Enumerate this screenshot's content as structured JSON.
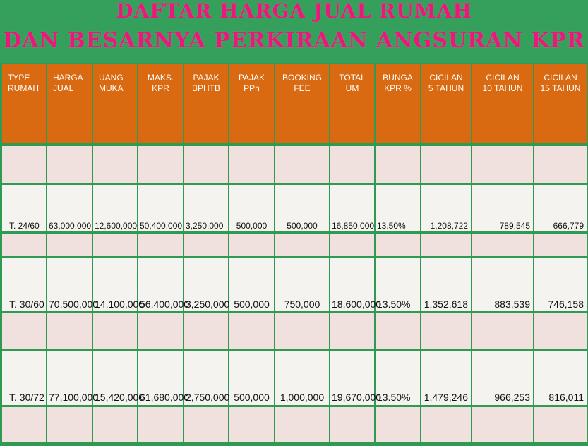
{
  "title": {
    "line1": "DAFTAR HARGA JUAL RUMAH",
    "line2": "DAN BESARNYA PERKIRAAN ANGSURAN KPR"
  },
  "headers": [
    "TYPE\nRUMAH",
    "HARGA\nJUAL",
    "UANG\nMUKA",
    "MAKS.\nKPR",
    "PAJAK\nBPHTB",
    "PAJAK\nPPh",
    "BOOKING\nFEE",
    "TOTAL\nUM",
    "BUNGA\nKPR %",
    "CICILAN\n5 TAHUN",
    "CICILAN\n10 TAHUN",
    "CICILAN\n15 TAHUN"
  ],
  "rows": [
    [
      "T. 24/60",
      "63,000,000",
      "12,600,000",
      "50,400,000",
      "3,250,000",
      "500,000",
      "500,000",
      "16,850,000",
      "13.50%",
      "1,208,722",
      "789,545",
      "666,779"
    ],
    [
      "T. 30/60",
      "70,500,000",
      "14,100,000",
      "56,400,000",
      "3,250,000",
      "500,000",
      "750,000",
      "18,600,000",
      "13.50%",
      "1,352,618",
      "883,539",
      "746,158"
    ],
    [
      "T. 30/72",
      "77,100,000",
      "15,420,000",
      "61,680,000",
      "2,750,000",
      "500,000",
      "1,000,000",
      "19,670,000",
      "13.50%",
      "1,479,246",
      "966,253",
      "816,011"
    ]
  ],
  "colors": {
    "header": "#d96a12",
    "title_text": "#e8197a",
    "background": "#2e9a52"
  }
}
